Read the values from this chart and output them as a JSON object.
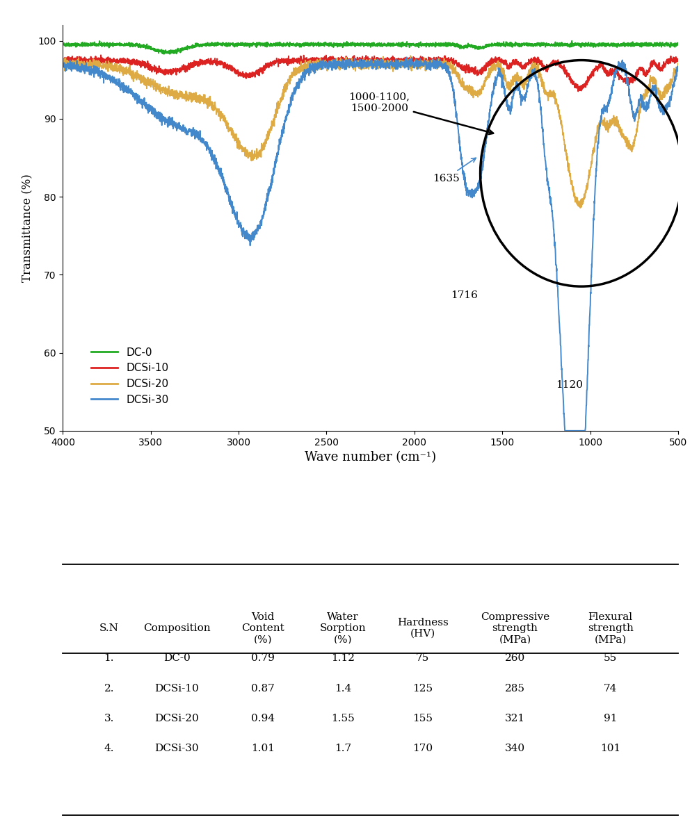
{
  "title": "",
  "xlabel": "Wave number (cm⁻¹)",
  "ylabel": "Transmittance (%)",
  "xlim": [
    4000,
    500
  ],
  "ylim": [
    50,
    102
  ],
  "yticks": [
    50,
    60,
    70,
    80,
    90,
    100
  ],
  "xticks": [
    4000,
    3500,
    3000,
    2500,
    2000,
    1500,
    1000,
    500
  ],
  "line_colors": {
    "DC-0": "#22aa22",
    "DCSi-10": "#dd2222",
    "DCSi-20": "#ddaa44",
    "DCSi-30": "#4488cc"
  },
  "table_data": [
    [
      "1.",
      "DC-0",
      "0.79",
      "1.12",
      "75",
      "260",
      "55"
    ],
    [
      "2.",
      "DCSi-10",
      "0.87",
      "1.4",
      "125",
      "285",
      "74"
    ],
    [
      "3.",
      "DCSi-20",
      "0.94",
      "1.55",
      "155",
      "321",
      "91"
    ],
    [
      "4.",
      "DCSi-30",
      "1.01",
      "1.7",
      "170",
      "340",
      "101"
    ]
  ],
  "background_color": "#ffffff"
}
